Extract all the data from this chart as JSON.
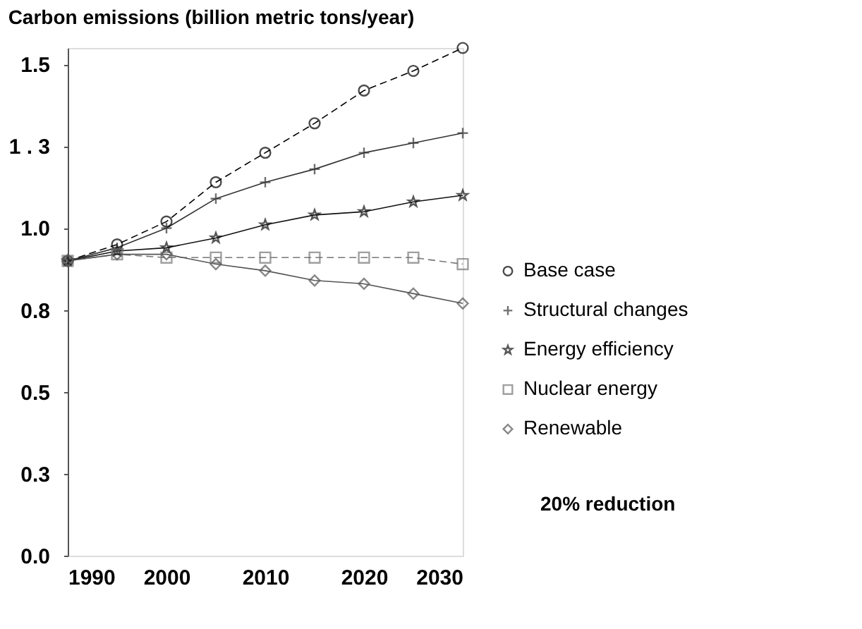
{
  "chart_data": {
    "type": "line",
    "title": "Carbon emissions (billion metric tons/year)",
    "x": [
      1990,
      1995,
      2000,
      2005,
      2010,
      2015,
      2020,
      2025,
      2030
    ],
    "xlim": [
      1990,
      2030
    ],
    "xticks": [
      1990,
      2000,
      2010,
      2020,
      2030
    ],
    "ylim": [
      0,
      1.55
    ],
    "yticks": [
      {
        "value": 0,
        "label": "0.0"
      },
      {
        "value": 0.25,
        "label": "0.3"
      },
      {
        "value": 0.5,
        "label": "0.5"
      },
      {
        "value": 0.75,
        "label": "0.8"
      },
      {
        "value": 1.0,
        "label": "1.0"
      },
      {
        "value": 1.25,
        "label": "1 . 3"
      },
      {
        "value": 1.5,
        "label": "1.5"
      }
    ],
    "grid": false,
    "legend": "right",
    "series": [
      {
        "name": "Base case",
        "color": "#000000",
        "marker": "circle",
        "line_style": "dashed",
        "values": [
          0.9,
          0.95,
          1.02,
          1.14,
          1.23,
          1.32,
          1.42,
          1.48,
          1.55
        ]
      },
      {
        "name": "Structural changes",
        "color": "#333333",
        "marker": "cross",
        "line_style": "solid",
        "values": [
          0.9,
          0.94,
          1.0,
          1.09,
          1.14,
          1.18,
          1.23,
          1.26,
          1.29
        ]
      },
      {
        "name": "Energy efficiency",
        "color": "#111111",
        "marker": "star",
        "line_style": "solid",
        "values": [
          0.9,
          0.93,
          0.94,
          0.97,
          1.01,
          1.04,
          1.05,
          1.08,
          1.1
        ]
      },
      {
        "name": "Nuclear energy",
        "color": "#777777",
        "marker": "square",
        "line_style": "dashed",
        "values": [
          0.9,
          0.92,
          0.91,
          0.91,
          0.91,
          0.91,
          0.91,
          0.91,
          0.89
        ]
      },
      {
        "name": "Renewable",
        "color": "#555555",
        "marker": "diamond",
        "line_style": "solid",
        "values": [
          0.9,
          0.92,
          0.92,
          0.89,
          0.87,
          0.84,
          0.83,
          0.8,
          0.77
        ]
      }
    ],
    "annotations": [
      "20% reduction"
    ]
  }
}
